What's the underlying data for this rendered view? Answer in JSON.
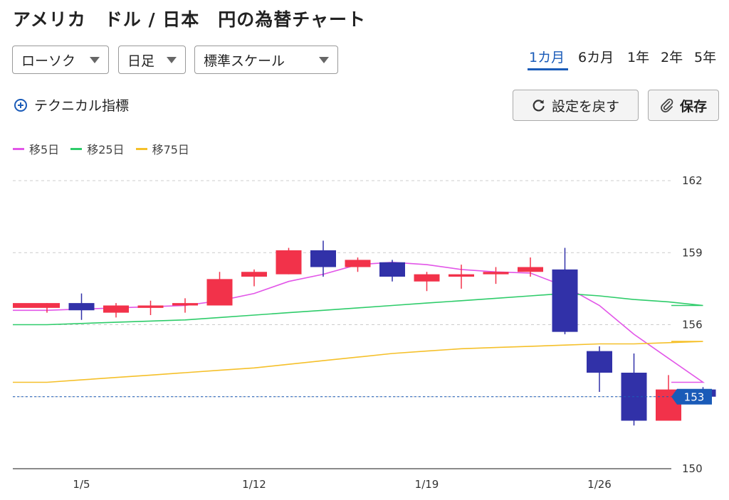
{
  "header": {
    "title": "アメリカ　ドル / 日本　円の為替チャート"
  },
  "controls": {
    "chart_type": "ローソク",
    "interval": "日足",
    "scale": "標準スケール",
    "periods": [
      "1カ月",
      "6カ月",
      "1年",
      "2年",
      "5年"
    ],
    "active_period": "1カ月",
    "technical_label": "テクニカル指標",
    "reset_label": "設定を戻す",
    "save_label": "保存"
  },
  "colors": {
    "up": "#f2324a",
    "down": "#3131a8",
    "ma5": "#e256e8",
    "ma25": "#2ecc6a",
    "ma75": "#f5c02a",
    "accent": "#1a5bb8"
  },
  "chart_data": {
    "type": "candlestick",
    "title": "",
    "ylim": [
      150,
      162
    ],
    "yticks": [
      150,
      153,
      156,
      159,
      162
    ],
    "last_value_label": "153",
    "last_value": 153.0,
    "xtick_labels": [
      {
        "label": "1/5",
        "index": 1
      },
      {
        "label": "1/12",
        "index": 6
      },
      {
        "label": "1/19",
        "index": 11
      },
      {
        "label": "1/26",
        "index": 16
      }
    ],
    "candles": [
      {
        "open": 156.7,
        "high": 156.9,
        "low": 156.5,
        "close": 156.9
      },
      {
        "open": 156.9,
        "high": 157.3,
        "low": 156.2,
        "close": 156.6
      },
      {
        "open": 156.5,
        "high": 156.9,
        "low": 156.3,
        "close": 156.8
      },
      {
        "open": 156.7,
        "high": 157.0,
        "low": 156.4,
        "close": 156.8
      },
      {
        "open": 156.8,
        "high": 157.1,
        "low": 156.5,
        "close": 156.9
      },
      {
        "open": 156.8,
        "high": 158.2,
        "low": 156.8,
        "close": 157.9
      },
      {
        "open": 158.0,
        "high": 158.3,
        "low": 157.6,
        "close": 158.2
      },
      {
        "open": 158.1,
        "high": 159.2,
        "low": 158.1,
        "close": 159.1
      },
      {
        "open": 159.1,
        "high": 159.5,
        "low": 158.0,
        "close": 158.4
      },
      {
        "open": 158.4,
        "high": 158.8,
        "low": 158.2,
        "close": 158.7
      },
      {
        "open": 158.6,
        "high": 158.7,
        "low": 157.8,
        "close": 158.0
      },
      {
        "open": 157.8,
        "high": 158.2,
        "low": 157.4,
        "close": 158.1
      },
      {
        "open": 158.0,
        "high": 158.5,
        "low": 157.5,
        "close": 158.1
      },
      {
        "open": 158.1,
        "high": 158.4,
        "low": 157.7,
        "close": 158.2
      },
      {
        "open": 158.2,
        "high": 158.8,
        "low": 158.0,
        "close": 158.4
      },
      {
        "open": 158.3,
        "high": 159.2,
        "low": 155.6,
        "close": 155.7
      },
      {
        "open": 154.9,
        "high": 155.1,
        "low": 153.2,
        "close": 154.0
      },
      {
        "open": 154.0,
        "high": 154.8,
        "low": 151.8,
        "close": 152.0
      },
      {
        "open": 152.0,
        "high": 153.9,
        "low": 152.0,
        "close": 153.3
      },
      {
        "open": 153.3,
        "high": 153.4,
        "low": 152.8,
        "close": 153.0
      }
    ],
    "series": [
      {
        "name": "移5日",
        "color": "#e256e8",
        "values": [
          156.6,
          156.65,
          156.7,
          156.75,
          156.8,
          157.0,
          157.3,
          157.8,
          158.1,
          158.5,
          158.6,
          158.5,
          158.3,
          158.2,
          158.15,
          157.6,
          156.8,
          155.6,
          154.6,
          153.6
        ]
      },
      {
        "name": "移25日",
        "color": "#2ecc6a",
        "values": [
          156.0,
          156.05,
          156.1,
          156.15,
          156.2,
          156.3,
          156.4,
          156.5,
          156.6,
          156.7,
          156.8,
          156.9,
          157.0,
          157.1,
          157.2,
          157.3,
          157.2,
          157.05,
          156.95,
          156.8
        ]
      },
      {
        "name": "移75日",
        "color": "#f5c02a",
        "values": [
          153.6,
          153.7,
          153.8,
          153.9,
          154.0,
          154.1,
          154.2,
          154.35,
          154.5,
          154.65,
          154.8,
          154.9,
          155.0,
          155.05,
          155.1,
          155.15,
          155.2,
          155.2,
          155.25,
          155.3
        ]
      }
    ]
  }
}
